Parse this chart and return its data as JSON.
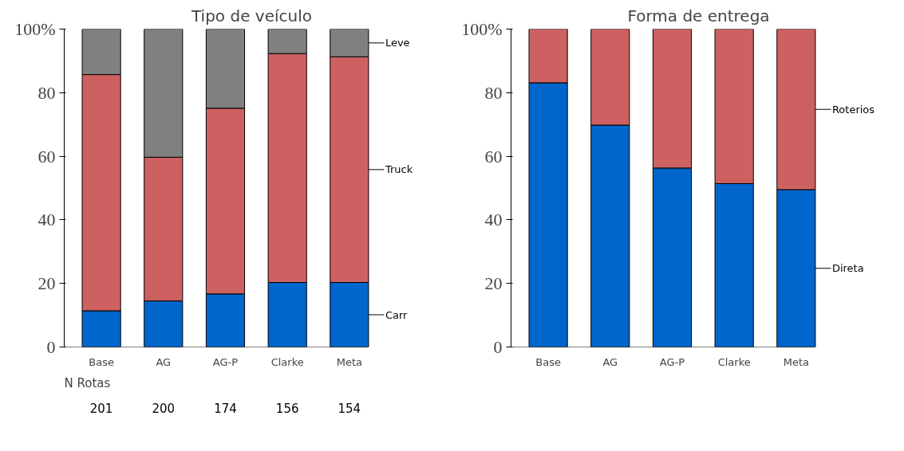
{
  "chart_data": [
    {
      "type": "bar",
      "title": "Tipo de veículo",
      "stacked": true,
      "legend": "right",
      "grid": false,
      "categories": [
        "Base",
        "AG",
        "AG-P",
        "Clarke",
        "Meta"
      ],
      "ylim": [
        0,
        100
      ],
      "yticks": [
        0,
        20,
        40,
        60,
        80,
        {
          "value": 100,
          "label": "100%"
        }
      ],
      "series": [
        {
          "name": "Carr",
          "color": "#0066cc",
          "values": [
            11.4,
            14.5,
            16.7,
            20.3,
            20.3
          ]
        },
        {
          "name": "Truck",
          "color": "#cd6161",
          "values": [
            74.3,
            45.2,
            58.4,
            72.0,
            71.0
          ]
        },
        {
          "name": "Leve",
          "color": "#808080",
          "values": [
            14.3,
            40.3,
            24.9,
            7.7,
            8.7
          ]
        }
      ],
      "annotations": [
        "N Rotas",
        "201",
        "200",
        "174",
        "156",
        "154"
      ]
    },
    {
      "type": "bar",
      "title": "Forma de entrega",
      "stacked": true,
      "legend": "right",
      "grid": false,
      "categories": [
        "Base",
        "AG",
        "AG-P",
        "Clarke",
        "Meta"
      ],
      "ylim": [
        0,
        100
      ],
      "yticks": [
        0,
        20,
        40,
        60,
        80,
        {
          "value": 100,
          "label": "100%"
        }
      ],
      "series": [
        {
          "name": "Direta",
          "color": "#0066cc",
          "values": [
            83.1,
            69.8,
            56.3,
            51.4,
            49.5
          ]
        },
        {
          "name": "Roterios",
          "color": "#cd6161",
          "values": [
            16.9,
            30.2,
            43.7,
            48.6,
            50.5
          ]
        }
      ]
    }
  ]
}
